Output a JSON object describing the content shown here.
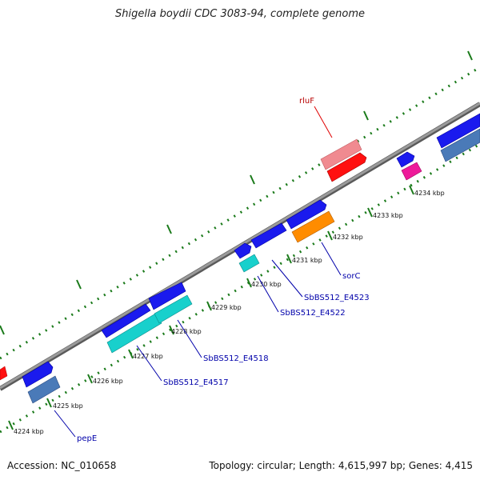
{
  "title": "Shigella boydii CDC 3083-94, complete genome",
  "footer": {
    "accession": "Accession: NC_010658",
    "summary": "Topology: circular; Length: 4,615,997 bp; Genes: 4,415"
  },
  "colors": {
    "backbone": "#8c8c8c",
    "ticks": "#1a7a1a",
    "forward_gene": "#1a1aee",
    "reverse_gene_blue": "#4a7ab8",
    "red": "#ff1010",
    "pink": "#f08a90",
    "cyan": "#18d0cc",
    "orange": "#ff8c00",
    "magenta": "#ee1a9a",
    "label_blue": "#0000aa",
    "label_red": "#b80000"
  },
  "ticks": [
    {
      "label": "4224 kbp"
    },
    {
      "label": "4225 kbp"
    },
    {
      "label": "4226 kbp"
    },
    {
      "label": "4227 kbp"
    },
    {
      "label": "4228 kbp"
    },
    {
      "label": "4229 kbp"
    },
    {
      "label": "4230 kbp"
    },
    {
      "label": "4231 kbp"
    },
    {
      "label": "4232 kbp"
    },
    {
      "label": "4233 kbp"
    },
    {
      "label": "4234 kbp"
    }
  ],
  "gene_labels": [
    {
      "text": "rluF"
    },
    {
      "text": "pepE"
    },
    {
      "text": "SbBS512_E4517"
    },
    {
      "text": "SbBS512_E4518"
    },
    {
      "text": "SbBS512_E4522"
    },
    {
      "text": "SbBS512_E4523"
    },
    {
      "text": "sorC"
    }
  ]
}
